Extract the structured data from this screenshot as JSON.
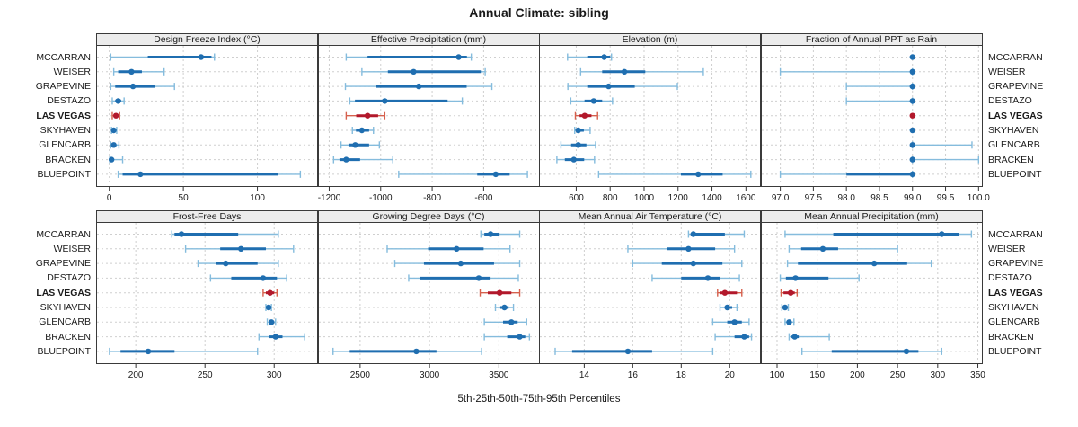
{
  "title": "Annual Climate: sibling",
  "caption": "5th-25th-50th-75th-95th Percentiles",
  "highlight_site": "LAS VEGAS",
  "colors": {
    "blue_light": "#85bcdd",
    "blue_dark": "#1f6eb0",
    "red_light": "#d6604d",
    "red_dark": "#b2182b",
    "header_bg": "#ececec",
    "grid": "#cfcfcf",
    "border": "#3a3a3a",
    "text": "#1a1a1a"
  },
  "chart_data": {
    "type": "scatter",
    "subtype": "percentile-dot-whisker",
    "percentiles": [
      5,
      25,
      50,
      75,
      95
    ],
    "categories": [
      "MCCARRAN",
      "WEISER",
      "GRAPEVINE",
      "DESTAZO",
      "LAS VEGAS",
      "SKYHAVEN",
      "GLENCARB",
      "BRACKEN",
      "BLUEPOINT"
    ],
    "legend": "none",
    "grid": "dashed",
    "panels": [
      {
        "title": "Design Freeze Index (°C)",
        "xlim": [
          -8.3,
          140.3
        ],
        "ticks": [
          0,
          50,
          100
        ],
        "tick_labels": [
          "0",
          "50",
          "100"
        ],
        "values": [
          [
            1,
            26,
            62,
            69,
            71
          ],
          [
            3,
            6,
            15,
            22,
            37
          ],
          [
            1,
            4,
            16,
            31,
            44
          ],
          [
            2,
            4,
            6,
            8,
            10
          ],
          [
            2,
            3,
            4.5,
            6,
            7
          ],
          [
            1.5,
            2.5,
            3,
            4,
            5
          ],
          [
            1,
            2,
            3,
            4,
            6.5
          ],
          [
            0.3,
            0.8,
            1.5,
            3,
            9
          ],
          [
            6,
            9,
            21,
            114,
            129
          ]
        ]
      },
      {
        "title": "Effective Precipitation (mm)",
        "xlim": [
          -1240,
          -385
        ],
        "ticks": [
          -1200,
          -1000,
          -800,
          -600
        ],
        "tick_labels": [
          "-1200",
          "-1000",
          "-800",
          "-600"
        ],
        "values": [
          [
            -1134,
            -1051,
            -697,
            -665,
            -648
          ],
          [
            -1073,
            -972,
            -872,
            -611,
            -594
          ],
          [
            -1137,
            -1017,
            -852,
            -666,
            -568
          ],
          [
            -1120,
            -1100,
            -984,
            -740,
            -683
          ],
          [
            -1134,
            -1095,
            -1051,
            -1010,
            -984
          ],
          [
            -1110,
            -1096,
            -1073,
            -1045,
            -1028
          ],
          [
            -1154,
            -1125,
            -1099,
            -1045,
            -1005
          ],
          [
            -1183,
            -1160,
            -1134,
            -1080,
            -953
          ],
          [
            -930,
            -625,
            -553,
            -499,
            -430
          ]
        ]
      },
      {
        "title": "Elevation (m)",
        "xlim": [
          386,
          1683
        ],
        "ticks": [
          600,
          800,
          1000,
          1200,
          1400,
          1600
        ],
        "tick_labels": [
          "600",
          "800",
          "1000",
          "1200",
          "1400",
          "1600"
        ],
        "values": [
          [
            549,
            665,
            765,
            800,
            808
          ],
          [
            626,
            753,
            884,
            1007,
            1349
          ],
          [
            551,
            665,
            791,
            945,
            1196
          ],
          [
            568,
            649,
            703,
            753,
            814
          ],
          [
            595,
            620,
            650,
            690,
            726
          ],
          [
            591,
            600,
            612,
            645,
            682
          ],
          [
            510,
            570,
            612,
            660,
            714
          ],
          [
            486,
            533,
            586,
            647,
            708
          ],
          [
            732,
            1217,
            1319,
            1463,
            1629
          ]
        ]
      },
      {
        "title": "Fraction of Annual PPT as Rain",
        "xlim": [
          96.72,
          100.05
        ],
        "ticks": [
          97.0,
          97.5,
          98.0,
          98.5,
          99.0,
          99.5,
          100.0
        ],
        "tick_labels": [
          "97.0",
          "97.5",
          "98.0",
          "98.5",
          "99.0",
          "99.5",
          "100.0"
        ],
        "values": [
          [
            99,
            99,
            99,
            99,
            99
          ],
          [
            97,
            99,
            99,
            99,
            99
          ],
          [
            98,
            99,
            99,
            99,
            99
          ],
          [
            98,
            99,
            99,
            99,
            99
          ],
          [
            99,
            99,
            99,
            99,
            99
          ],
          [
            99,
            99,
            99,
            99,
            99
          ],
          [
            99,
            99,
            99,
            99,
            99.9
          ],
          [
            99,
            99,
            99,
            99,
            100
          ],
          [
            97,
            98,
            99,
            99,
            99
          ]
        ]
      },
      {
        "title": "Frost-Free Days",
        "xlim": [
          172,
          331
        ],
        "ticks": [
          200,
          250,
          300
        ],
        "tick_labels": [
          "200",
          "250",
          "300"
        ],
        "values": [
          [
            226,
            228,
            233,
            274,
            303
          ],
          [
            236,
            261,
            276,
            294,
            314
          ],
          [
            245,
            258,
            265,
            288,
            303
          ],
          [
            254,
            269,
            292,
            302,
            309
          ],
          [
            292,
            294,
            297,
            300,
            302
          ],
          [
            294,
            295,
            296,
            297,
            298
          ],
          [
            295,
            297,
            298,
            300,
            301
          ],
          [
            289,
            296,
            301,
            306,
            322
          ],
          [
            181,
            189,
            209,
            228,
            288
          ]
        ]
      },
      {
        "title": "Growing Degree Days (°C)",
        "xlim": [
          2203,
          3789
        ],
        "ticks": [
          2500,
          3000,
          3500
        ],
        "tick_labels": [
          "2500",
          "3000",
          "3500"
        ],
        "values": [
          [
            3370,
            3395,
            3440,
            3505,
            3650
          ],
          [
            2695,
            2990,
            3195,
            3390,
            3580
          ],
          [
            2750,
            2960,
            3225,
            3465,
            3650
          ],
          [
            2850,
            2930,
            3355,
            3440,
            3640
          ],
          [
            3365,
            3420,
            3505,
            3590,
            3650
          ],
          [
            3475,
            3510,
            3540,
            3570,
            3605
          ],
          [
            3395,
            3530,
            3590,
            3635,
            3700
          ],
          [
            3395,
            3560,
            3650,
            3690,
            3720
          ],
          [
            2305,
            2425,
            2905,
            3050,
            3375
          ]
        ]
      },
      {
        "title": "Mean Annual Air Temperature (°C)",
        "xlim": [
          12.17,
          21.25
        ],
        "ticks": [
          14,
          16,
          18,
          20
        ],
        "tick_labels": [
          "14",
          "16",
          "18",
          "20"
        ],
        "values": [
          [
            18.3,
            18.4,
            18.5,
            19.8,
            20.6
          ],
          [
            15.8,
            17.4,
            18.3,
            19.4,
            20.2
          ],
          [
            16.0,
            17.2,
            18.5,
            19.7,
            20.5
          ],
          [
            16.8,
            18.0,
            19.1,
            19.6,
            20.4
          ],
          [
            19.5,
            19.6,
            19.8,
            20.3,
            20.5
          ],
          [
            19.6,
            19.8,
            19.9,
            20.1,
            20.3
          ],
          [
            19.3,
            19.9,
            20.2,
            20.5,
            20.8
          ],
          [
            19.4,
            20.2,
            20.6,
            20.8,
            20.9
          ],
          [
            12.8,
            13.5,
            15.8,
            16.8,
            19.3
          ]
        ]
      },
      {
        "title": "Mean Annual Precipitation (mm)",
        "xlim": [
          81,
          355
        ],
        "ticks": [
          100,
          150,
          200,
          250,
          300,
          350
        ],
        "tick_labels": [
          "100",
          "150",
          "200",
          "250",
          "300",
          "350"
        ],
        "values": [
          [
            110,
            170,
            305,
            327,
            342
          ],
          [
            115,
            130,
            157,
            176,
            250
          ],
          [
            113,
            126,
            221,
            262,
            292
          ],
          [
            104,
            111,
            123,
            164,
            202
          ],
          [
            105,
            108,
            117,
            122,
            125
          ],
          [
            106,
            108,
            110,
            112,
            114
          ],
          [
            110,
            113,
            115,
            118,
            121
          ],
          [
            115,
            118,
            122,
            127,
            165
          ],
          [
            131,
            168,
            261,
            276,
            305
          ]
        ]
      }
    ]
  }
}
